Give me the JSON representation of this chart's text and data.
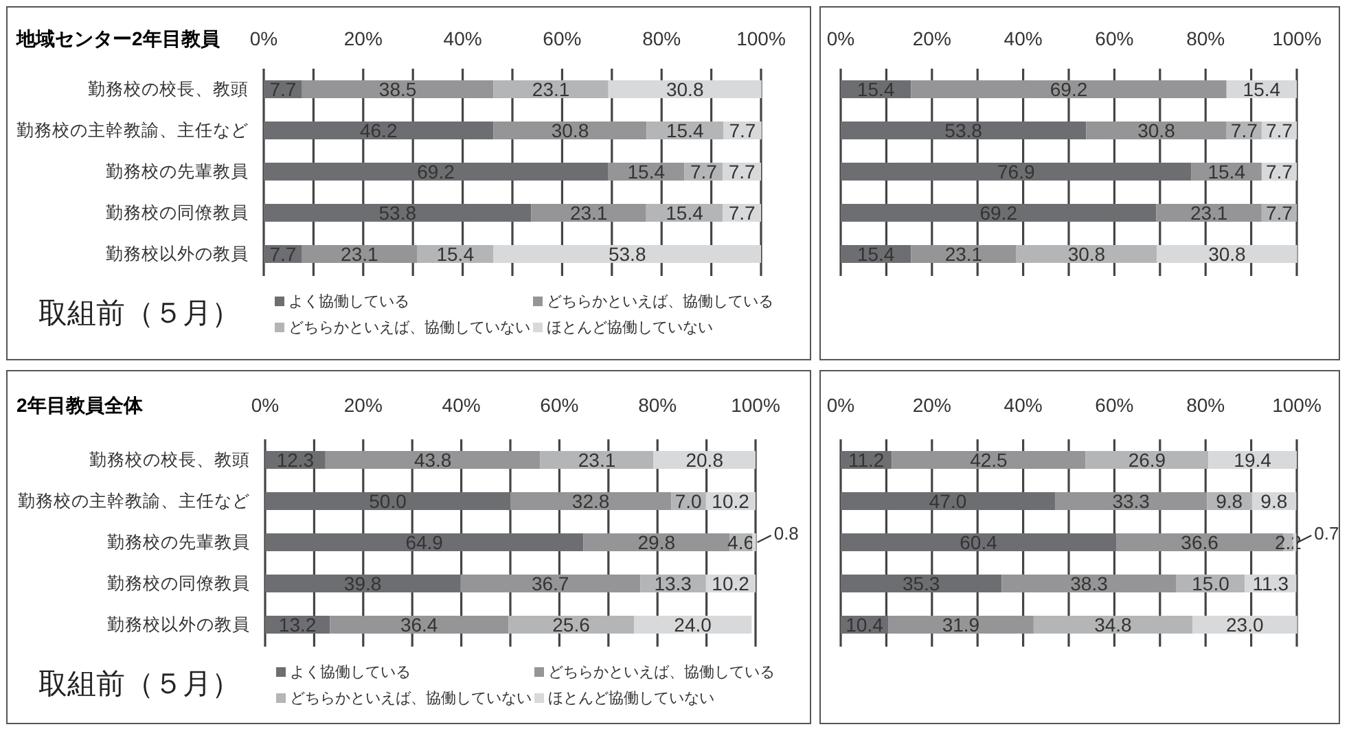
{
  "chart_data": [
    {
      "type": "bar",
      "orientation": "horizontal",
      "stacked": true,
      "title": "地域センター2年目教員",
      "legend_title": "取組前（５月）",
      "legend": "bottom",
      "grid": "x",
      "categories": [
        "勤務校の校長、教頭",
        "勤務校の主幹教諭、主任など",
        "勤務校の先輩教員",
        "勤務校の同僚教員",
        "勤務校以外の教員"
      ],
      "xlim": [
        0,
        100
      ],
      "xticks": [
        {
          "value": 0,
          "label": "0%"
        },
        {
          "value": 10,
          "label": null
        },
        {
          "value": 20,
          "label": "20%"
        },
        {
          "value": 30,
          "label": null
        },
        {
          "value": 40,
          "label": "40%"
        },
        {
          "value": 50,
          "label": null
        },
        {
          "value": 60,
          "label": "60%"
        },
        {
          "value": 70,
          "label": null
        },
        {
          "value": 80,
          "label": "80%"
        },
        {
          "value": 90,
          "label": null
        },
        {
          "value": 100,
          "label": "100%"
        }
      ],
      "series": [
        {
          "name": "よく協働している",
          "color": "#6d6e71",
          "values": [
            7.7,
            46.2,
            69.2,
            53.8,
            7.7
          ],
          "value_labels": [
            "7.7",
            "46.2",
            "69.2",
            "53.8",
            "7.7"
          ]
        },
        {
          "name": "どちらかといえば、協働している",
          "color": "#959597",
          "values": [
            38.5,
            30.8,
            15.4,
            23.1,
            23.1
          ],
          "value_labels": [
            "38.5",
            "30.8",
            "15.4",
            "23.1",
            "23.1"
          ]
        },
        {
          "name": "どちらかといえば、協働していない",
          "color": "#b4b5b7",
          "values": [
            23.1,
            15.4,
            7.7,
            15.4,
            15.4
          ],
          "value_labels": [
            "23.1",
            "15.4",
            "7.7",
            "15.4",
            "15.4"
          ]
        },
        {
          "name": "ほとんど協働していない",
          "color": "#d8d9db",
          "values": [
            30.8,
            7.7,
            7.7,
            7.7,
            53.8
          ],
          "value_labels": [
            "30.8",
            "7.7",
            "7.7",
            "7.7",
            "53.8"
          ]
        }
      ]
    },
    {
      "type": "bar",
      "orientation": "horizontal",
      "stacked": true,
      "grid": "x",
      "tick_labels": "x",
      "categories": [
        null,
        null,
        null,
        null,
        null
      ],
      "xlim": [
        0,
        100
      ],
      "xticks": [
        {
          "value": 0,
          "label": "0%"
        },
        {
          "value": 10,
          "label": null
        },
        {
          "value": 20,
          "label": "20%"
        },
        {
          "value": 30,
          "label": null
        },
        {
          "value": 40,
          "label": "40%"
        },
        {
          "value": 50,
          "label": null
        },
        {
          "value": 60,
          "label": "60%"
        },
        {
          "value": 70,
          "label": null
        },
        {
          "value": 80,
          "label": "80%"
        },
        {
          "value": 90,
          "label": null
        },
        {
          "value": 100,
          "label": "100%"
        }
      ],
      "series": [
        {
          "color": "#6d6e71",
          "values": [
            15.4,
            53.8,
            76.9,
            69.2,
            15.4
          ],
          "value_labels": [
            "15.4",
            "53.8",
            "76.9",
            "69.2",
            "15.4"
          ]
        },
        {
          "color": "#959597",
          "values": [
            69.2,
            30.8,
            15.4,
            23.1,
            23.1
          ],
          "value_labels": [
            "69.2",
            "30.8",
            "15.4",
            "23.1",
            "23.1"
          ]
        },
        {
          "color": "#b4b5b7",
          "values": [
            null,
            7.7,
            null,
            7.7,
            30.8
          ],
          "value_labels": [
            null,
            "7.7",
            null,
            "7.7",
            "30.8"
          ]
        },
        {
          "color": "#d8d9db",
          "values": [
            15.4,
            7.7,
            7.7,
            null,
            30.8
          ],
          "value_labels": [
            "15.4",
            "7.7",
            "7.7",
            null,
            "30.8"
          ]
        }
      ]
    },
    {
      "type": "bar",
      "orientation": "horizontal",
      "stacked": true,
      "title": "2年目教員全体",
      "legend_title": "取組前（５月）",
      "legend": "bottom",
      "grid": "x",
      "categories": [
        "勤務校の校長、教頭",
        "勤務校の主幹教諭、主任など",
        "勤務校の先輩教員",
        "勤務校の同僚教員",
        "勤務校以外の教員"
      ],
      "xlim": [
        0,
        100
      ],
      "xticks": [
        {
          "value": 0,
          "label": "0%"
        },
        {
          "value": 10,
          "label": null
        },
        {
          "value": 20,
          "label": "20%"
        },
        {
          "value": 30,
          "label": null
        },
        {
          "value": 40,
          "label": "40%"
        },
        {
          "value": 50,
          "label": null
        },
        {
          "value": 60,
          "label": "60%"
        },
        {
          "value": 70,
          "label": null
        },
        {
          "value": 80,
          "label": "80%"
        },
        {
          "value": 90,
          "label": null
        },
        {
          "value": 100,
          "label": "100%"
        }
      ],
      "series": [
        {
          "name": "よく協働している",
          "color": "#6d6e71",
          "values": [
            12.3,
            50.0,
            64.9,
            39.8,
            13.2
          ],
          "value_labels": [
            "12.3",
            "50.0",
            "64.9",
            "39.8",
            "13.2"
          ]
        },
        {
          "name": "どちらかといえば、協働している",
          "color": "#959597",
          "values": [
            43.8,
            32.8,
            29.8,
            36.7,
            36.4
          ],
          "value_labels": [
            "43.8",
            "32.8",
            "29.8",
            "36.7",
            "36.4"
          ]
        },
        {
          "name": "どちらかといえば、協働していない",
          "color": "#b4b5b7",
          "values": [
            23.1,
            7.0,
            4.6,
            13.3,
            25.6
          ],
          "value_labels": [
            "23.1",
            "7.0",
            "4.6",
            "13.3",
            "25.6"
          ]
        },
        {
          "name": "ほとんど協働していない",
          "color": "#d8d9db",
          "values": [
            20.8,
            10.2,
            0.8,
            10.2,
            24.0
          ],
          "value_labels": [
            "20.8",
            "10.2",
            "0.8",
            "10.2",
            "24.0"
          ]
        }
      ]
    },
    {
      "type": "bar",
      "orientation": "horizontal",
      "stacked": true,
      "grid": "x",
      "tick_labels": "x",
      "categories": [
        null,
        null,
        null,
        null,
        null
      ],
      "xlim": [
        0,
        100
      ],
      "xticks": [
        {
          "value": 0,
          "label": "0%"
        },
        {
          "value": 10,
          "label": null
        },
        {
          "value": 20,
          "label": "20%"
        },
        {
          "value": 30,
          "label": null
        },
        {
          "value": 40,
          "label": "40%"
        },
        {
          "value": 50,
          "label": null
        },
        {
          "value": 60,
          "label": "60%"
        },
        {
          "value": 70,
          "label": null
        },
        {
          "value": 80,
          "label": "80%"
        },
        {
          "value": 90,
          "label": null
        },
        {
          "value": 100,
          "label": "100%"
        }
      ],
      "series": [
        {
          "color": "#6d6e71",
          "values": [
            11.2,
            47.0,
            60.4,
            35.3,
            10.4
          ],
          "value_labels": [
            "11.2",
            "47.0",
            "60.4",
            "35.3",
            "10.4"
          ]
        },
        {
          "color": "#959597",
          "values": [
            42.5,
            33.3,
            36.6,
            38.3,
            31.9
          ],
          "value_labels": [
            "42.5",
            "33.3",
            "36.6",
            "38.3",
            "31.9"
          ]
        },
        {
          "color": "#b4b5b7",
          "values": [
            26.9,
            9.8,
            2.2,
            15.0,
            34.8
          ],
          "value_labels": [
            "26.9",
            "9.8",
            "2.2",
            "15.0",
            "34.8"
          ]
        },
        {
          "color": "#d8d9db",
          "values": [
            19.4,
            9.8,
            0.7,
            11.3,
            23.0
          ],
          "value_labels": [
            "19.4",
            "9.8",
            "0.7",
            "11.3",
            "23.0"
          ]
        }
      ]
    }
  ]
}
